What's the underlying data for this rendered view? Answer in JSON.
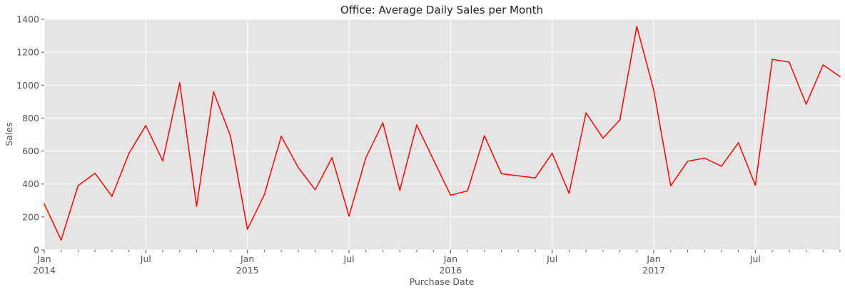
{
  "chart_data": {
    "type": "line",
    "title": "Office: Average Daily Sales per Month",
    "xlabel": "Purchase Date",
    "ylabel": "Sales",
    "ylim": [
      0,
      1400
    ],
    "xlim": [
      "2014-01",
      "2017-12"
    ],
    "grid": true,
    "yticks": [
      0,
      200,
      400,
      600,
      800,
      1000,
      1200,
      1400
    ],
    "xticks": [
      {
        "month": "2014-01",
        "label": "Jan",
        "year": "2014"
      },
      {
        "month": "2014-07",
        "label": "Jul",
        "year": ""
      },
      {
        "month": "2015-01",
        "label": "Jan",
        "year": "2015"
      },
      {
        "month": "2015-07",
        "label": "Jul",
        "year": ""
      },
      {
        "month": "2016-01",
        "label": "Jan",
        "year": "2016"
      },
      {
        "month": "2016-07",
        "label": "Jul",
        "year": ""
      },
      {
        "month": "2017-01",
        "label": "Jan",
        "year": "2017"
      },
      {
        "month": "2017-07",
        "label": "Jul",
        "year": ""
      }
    ],
    "series": [
      {
        "color": "#ff0000",
        "x": [
          "2014-01",
          "2014-02",
          "2014-03",
          "2014-04",
          "2014-05",
          "2014-06",
          "2014-07",
          "2014-08",
          "2014-09",
          "2014-10",
          "2014-11",
          "2014-12",
          "2015-01",
          "2015-02",
          "2015-03",
          "2015-04",
          "2015-05",
          "2015-06",
          "2015-07",
          "2015-08",
          "2015-09",
          "2015-10",
          "2015-11",
          "2015-12",
          "2016-01",
          "2016-02",
          "2016-03",
          "2016-04",
          "2016-05",
          "2016-06",
          "2016-07",
          "2016-08",
          "2016-09",
          "2016-10",
          "2016-11",
          "2016-12",
          "2017-01",
          "2017-02",
          "2017-03",
          "2017-04",
          "2017-05",
          "2017-06",
          "2017-07",
          "2017-08",
          "2017-09",
          "2017-10",
          "2017-11",
          "2017-12"
        ],
        "values": [
          280,
          60,
          390,
          465,
          325,
          585,
          755,
          540,
          1015,
          265,
          960,
          690,
          125,
          335,
          690,
          500,
          365,
          560,
          205,
          560,
          772,
          362,
          758,
          545,
          332,
          358,
          693,
          463,
          450,
          437,
          587,
          344,
          832,
          678,
          790,
          1357,
          970,
          389,
          538,
          557,
          508,
          650,
          392,
          1157,
          1140,
          884,
          1123,
          1052
        ]
      }
    ]
  }
}
